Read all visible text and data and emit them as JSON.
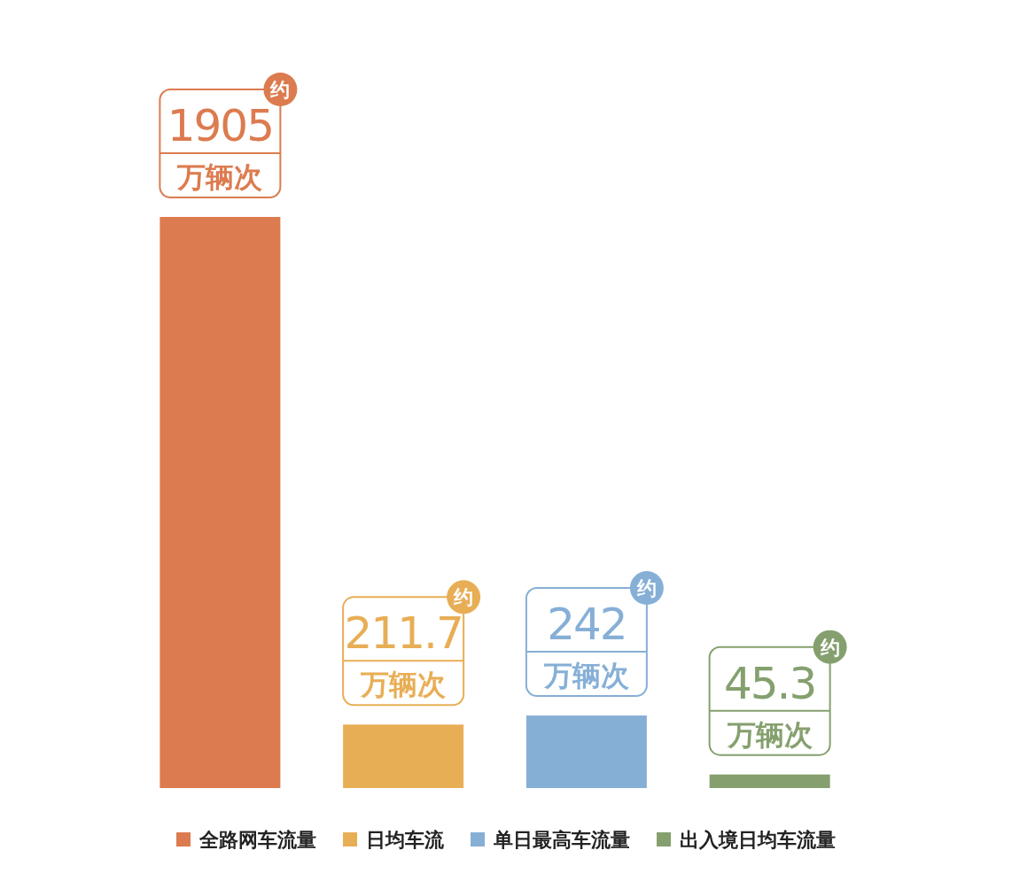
{
  "chart_data": {
    "type": "bar",
    "categories": [
      null,
      null,
      null,
      null
    ],
    "series": [
      {
        "name": "全路网车流量",
        "color": "#dc7b4f",
        "values": [
          1905,
          null,
          null,
          null
        ],
        "value_labels": [
          "1905\n万辆次",
          null,
          null,
          null
        ]
      },
      {
        "name": "日均车流",
        "color": "#e8ae55",
        "values": [
          null,
          211.7,
          null,
          null
        ],
        "value_labels": [
          null,
          "211.7\n万辆次",
          null,
          null
        ]
      },
      {
        "name": "单日最高车流量",
        "color": "#86afd6",
        "values": [
          null,
          null,
          242,
          null
        ],
        "value_labels": [
          null,
          null,
          "242\n万辆次",
          null
        ]
      },
      {
        "name": "出入境日均车流量",
        "color": "#85a06e",
        "values": [
          null,
          null,
          null,
          45.3
        ],
        "value_labels": [
          null,
          null,
          null,
          "45.3\n万辆次"
        ]
      }
    ],
    "annotations": [
      "约",
      "约",
      "约",
      "约"
    ],
    "stacked": true,
    "legend": "bottom"
  }
}
